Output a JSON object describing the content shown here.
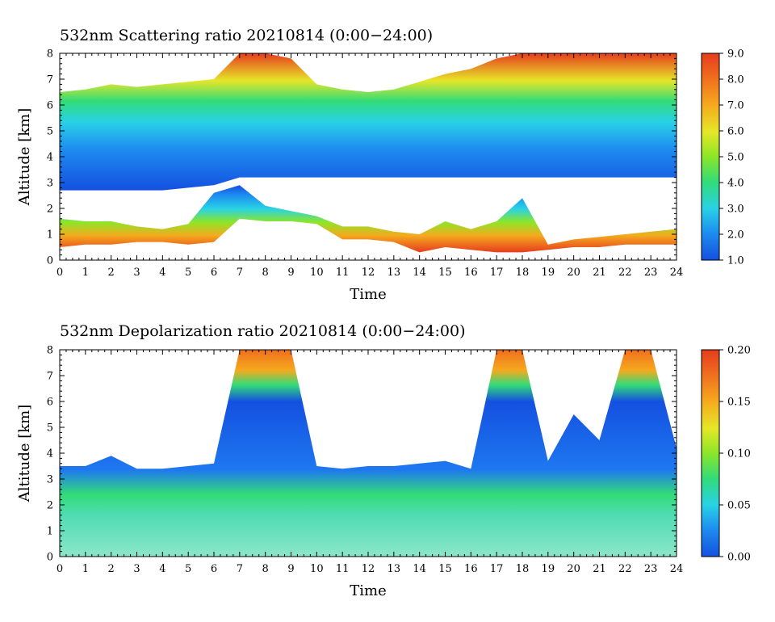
{
  "chart_data": [
    {
      "type": "heatmap",
      "title": "532nm Scattering ratio",
      "date": "20210814",
      "range_label": "(0:00−24:00)",
      "xlabel": "Time",
      "ylabel": "Altitude [km]",
      "xlim": [
        0,
        24
      ],
      "ylim": [
        0,
        8
      ],
      "xticks": [
        "0",
        "1",
        "2",
        "3",
        "4",
        "5",
        "6",
        "7",
        "8",
        "9",
        "10",
        "11",
        "12",
        "13",
        "14",
        "15",
        "16",
        "17",
        "18",
        "19",
        "20",
        "21",
        "22",
        "23",
        "24"
      ],
      "yticks": [
        "0",
        "1",
        "2",
        "3",
        "4",
        "5",
        "6",
        "7",
        "8"
      ],
      "colorbar": {
        "min": 1.0,
        "max": 9.0,
        "ticks": [
          "1.0",
          "2.0",
          "3.0",
          "4.0",
          "5.0",
          "6.0",
          "7.0",
          "8.0",
          "9.0"
        ]
      },
      "layers": [
        {
          "name": "aerosol-layer",
          "start_time": 0,
          "end_time": 24,
          "bottom_km": [
            2.7,
            2.7,
            2.7,
            2.7,
            2.7,
            2.8,
            2.9,
            3.2,
            3.2,
            3.2,
            3.2,
            3.2,
            3.2,
            3.2,
            3.2,
            3.2,
            3.2,
            3.2,
            3.2,
            3.2,
            3.2,
            3.2,
            3.2,
            3.2,
            3.2
          ],
          "top_km": [
            6.5,
            6.6,
            6.8,
            6.7,
            6.8,
            6.9,
            7.0,
            8.0,
            8.0,
            7.8,
            6.8,
            6.6,
            6.5,
            6.6,
            6.9,
            7.2,
            7.4,
            7.8,
            8.0,
            8.0,
            8.0,
            8.0,
            8.0,
            8.0,
            8.0
          ]
        },
        {
          "name": "boundary-layer",
          "start_time": 0,
          "end_time": 24,
          "bottom_km": [
            0.5,
            0.6,
            0.6,
            0.7,
            0.7,
            0.6,
            0.7,
            1.6,
            1.5,
            1.5,
            1.4,
            0.8,
            0.8,
            0.7,
            0.3,
            0.5,
            0.4,
            0.3,
            0.3,
            0.4,
            0.5,
            0.5,
            0.6,
            0.6,
            0.6
          ],
          "top_km": [
            1.6,
            1.5,
            1.5,
            1.3,
            1.2,
            1.4,
            2.6,
            2.9,
            2.1,
            1.9,
            1.7,
            1.3,
            1.3,
            1.1,
            1.0,
            1.5,
            1.2,
            1.5,
            2.4,
            0.6,
            0.8,
            0.9,
            1.0,
            1.1,
            1.2
          ]
        }
      ]
    },
    {
      "type": "heatmap",
      "title": "532nm Depolarization ratio",
      "date": "20210814",
      "range_label": "(0:00−24:00)",
      "xlabel": "Time",
      "ylabel": "Altitude [km]",
      "xlim": [
        0,
        24
      ],
      "ylim": [
        0,
        8
      ],
      "xticks": [
        "0",
        "1",
        "2",
        "3",
        "4",
        "5",
        "6",
        "7",
        "8",
        "9",
        "10",
        "11",
        "12",
        "13",
        "14",
        "15",
        "16",
        "17",
        "18",
        "19",
        "20",
        "21",
        "22",
        "23",
        "24"
      ],
      "yticks": [
        "0",
        "1",
        "2",
        "3",
        "4",
        "5",
        "6",
        "7",
        "8"
      ],
      "colorbar": {
        "min": 0.0,
        "max": 0.2,
        "ticks": [
          "0.00",
          "0.05",
          "0.10",
          "0.15",
          "0.20"
        ]
      },
      "layers": [
        {
          "name": "depol-surface",
          "start_time": 0,
          "end_time": 24,
          "bottom_km": [
            0,
            0,
            0,
            0,
            0,
            0,
            0,
            0,
            0,
            0,
            0,
            0,
            0,
            0,
            0,
            0,
            0,
            0,
            0,
            0,
            0,
            0,
            0,
            0,
            0
          ],
          "top_km": [
            3.5,
            3.5,
            3.9,
            3.4,
            3.4,
            3.5,
            3.6,
            8.0,
            8.0,
            8.0,
            3.5,
            3.4,
            3.5,
            3.5,
            3.6,
            3.7,
            3.4,
            8.0,
            8.0,
            3.7,
            5.5,
            4.5,
            8.0,
            8.0,
            4.2
          ]
        }
      ]
    }
  ]
}
